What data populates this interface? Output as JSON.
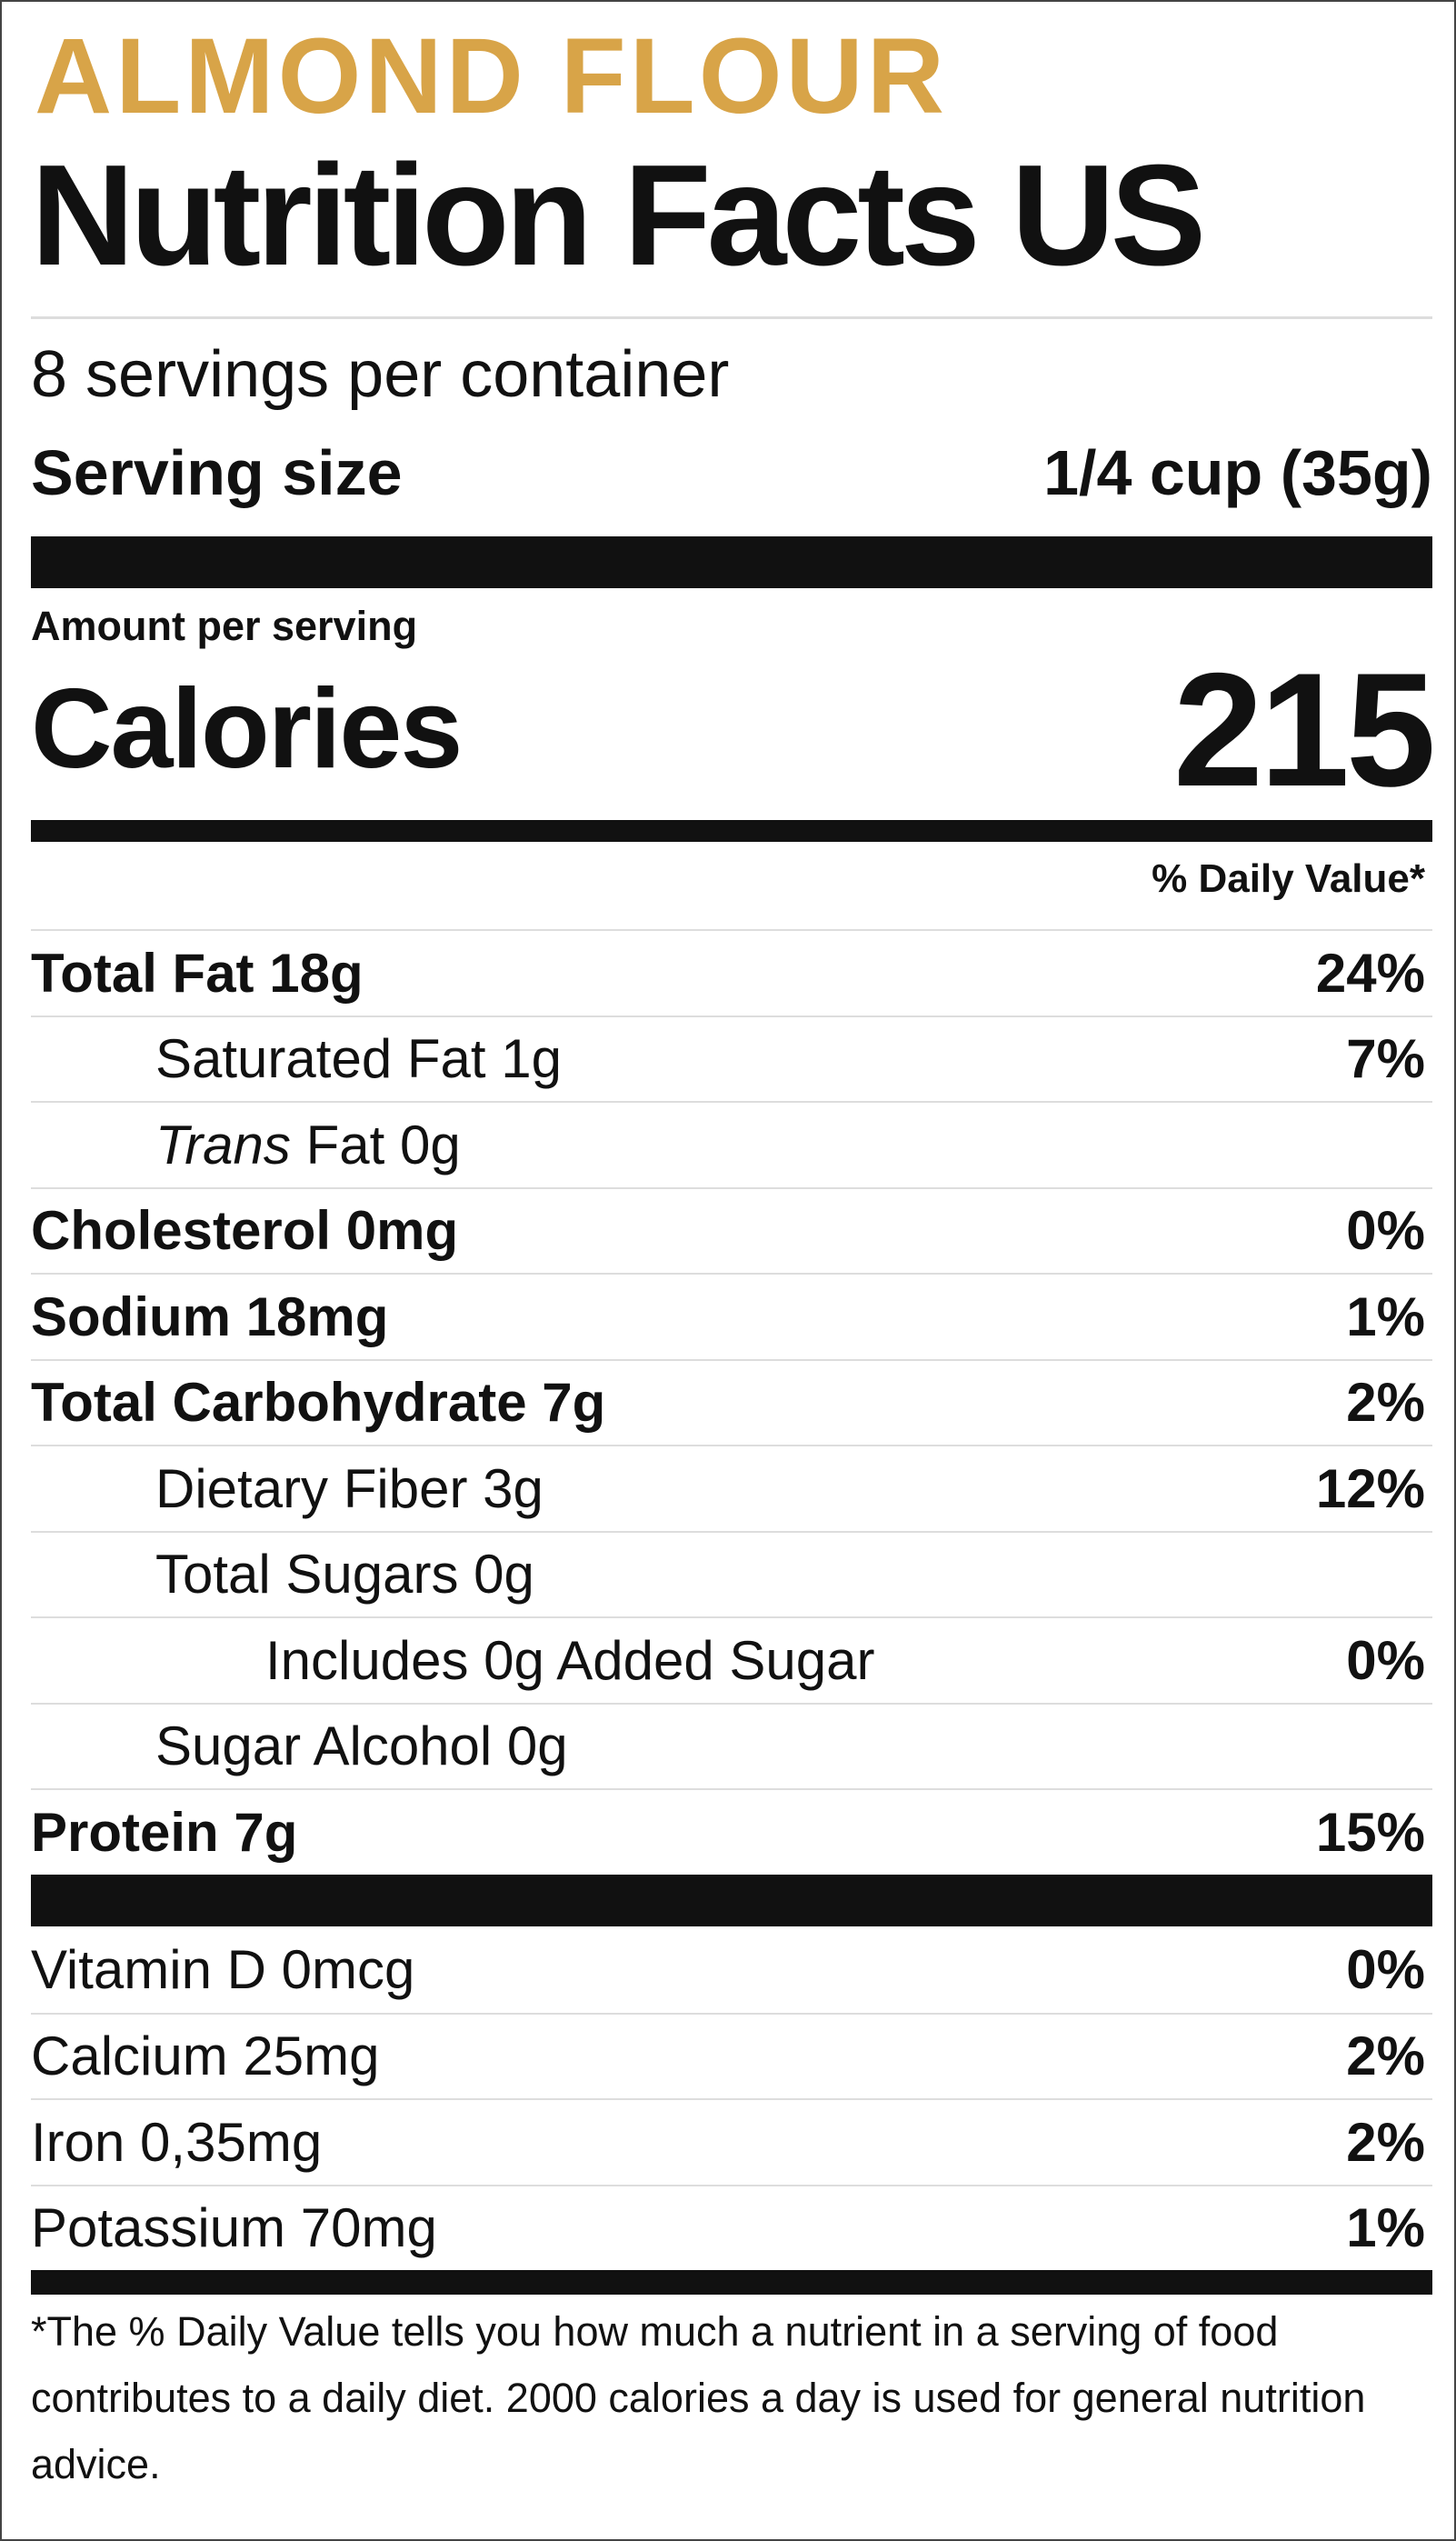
{
  "brand": "ALMOND FLOUR",
  "title": "Nutrition Facts US",
  "servings": "8 servings per container",
  "serving_size": {
    "label": "Serving size",
    "value": "1/4 cup (35g)"
  },
  "amount_per_serving": "Amount per serving",
  "calories": {
    "label": "Calories",
    "value": "215"
  },
  "daily_value_header": "% Daily Value*",
  "nutrients": [
    {
      "name": "Total Fat 18g",
      "dv": "24%",
      "level": 0,
      "bold": true
    },
    {
      "name": "Saturated Fat 1g",
      "dv": "7%",
      "level": 1,
      "bold": false
    },
    {
      "italic": "Trans",
      "name": "Fat 0g",
      "level": 1,
      "bold": false
    },
    {
      "name": "Cholesterol 0mg",
      "dv": "0%",
      "level": 0,
      "bold": true
    },
    {
      "name": "Sodium 18mg",
      "dv": "1%",
      "level": 0,
      "bold": true
    },
    {
      "name": "Total Carbohydrate 7g",
      "dv": "2%",
      "level": 0,
      "bold": true
    },
    {
      "name": "Dietary Fiber 3g",
      "dv": "12%",
      "level": 1,
      "bold": false
    },
    {
      "name": "Total Sugars 0g",
      "level": 1,
      "bold": false
    },
    {
      "name": "Includes 0g Added Sugar",
      "dv": "0%",
      "level": 2,
      "bold": false
    },
    {
      "name": "Sugar Alcohol 0g",
      "level": 1,
      "bold": false
    },
    {
      "name": "Protein 7g",
      "dv": "15%",
      "level": 0,
      "bold": true
    }
  ],
  "vitamins": [
    {
      "name": "Vitamin D 0mcg",
      "dv": "0%"
    },
    {
      "name": "Calcium 25mg",
      "dv": "2%"
    },
    {
      "name": "Iron 0,35mg",
      "dv": "2%"
    },
    {
      "name": "Potassium 70mg",
      "dv": "1%"
    }
  ],
  "footnote": "*The % Daily Value tells you how much a nutrient in a serving of food contributes to a daily diet. 2000 calories a day is used for general nutrition advice."
}
